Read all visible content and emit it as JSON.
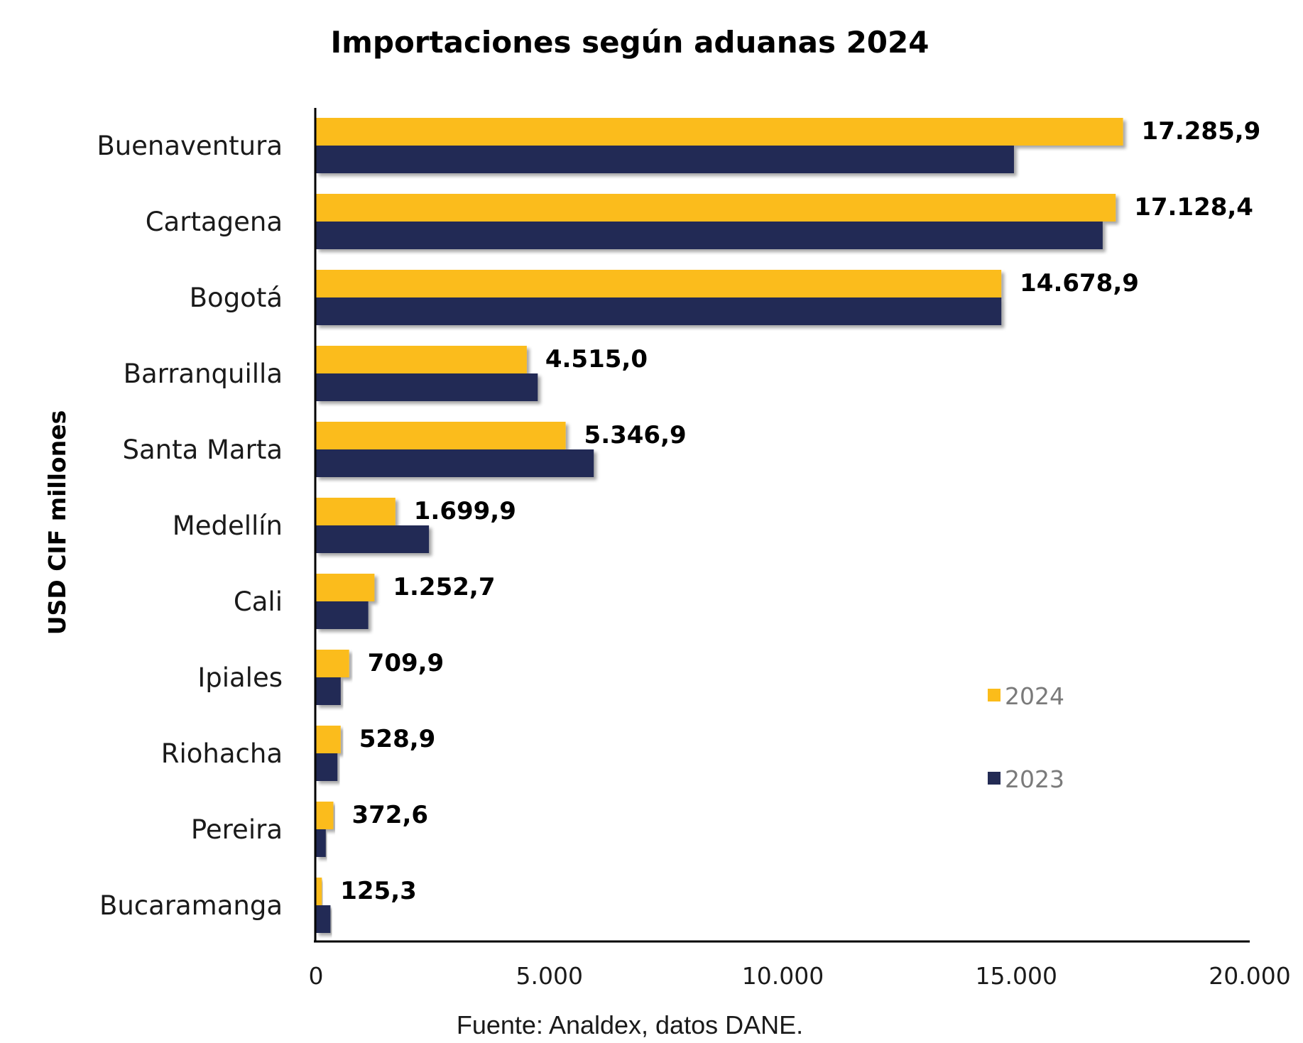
{
  "chart_data": {
    "type": "bar",
    "orientation": "horizontal",
    "title": "Importaciones según aduanas 2024",
    "ylabel": "USD CIF millones",
    "xlabel": "",
    "source": "Fuente: Analdex, datos DANE.",
    "categories": [
      "Buenaventura",
      "Cartagena",
      "Bogotá",
      "Barranquilla",
      "Santa Marta",
      "Medellín",
      "Cali",
      "Ipiales",
      "Riohacha",
      "Pereira",
      "Bucaramanga"
    ],
    "series": [
      {
        "name": "2024",
        "color": "#FBBC1A",
        "values": [
          17285.9,
          17128.4,
          14678.9,
          4515.0,
          5346.9,
          1699.9,
          1252.7,
          709.9,
          528.9,
          372.6,
          125.3
        ],
        "labels": [
          "17.285,9",
          "17.128,4",
          "14.678,9",
          "4.515,0",
          "5.346,9",
          "1.699,9",
          "1.252,7",
          "709,9",
          "528,9",
          "372,6",
          "125,3"
        ]
      },
      {
        "name": "2023",
        "color": "#232B54",
        "values": [
          14950,
          16850,
          14680,
          4750,
          5950,
          2420,
          1120,
          530,
          460,
          210,
          310
        ]
      }
    ],
    "xlim": [
      0,
      20000
    ],
    "xticks": [
      0,
      5000,
      10000,
      15000,
      20000
    ],
    "xtick_labels": [
      "0",
      "5.000",
      "10.000",
      "15.000",
      "20.000"
    ],
    "grid": false,
    "legend": {
      "position": "bottom-right",
      "entries": [
        "2024",
        "2023"
      ]
    }
  }
}
